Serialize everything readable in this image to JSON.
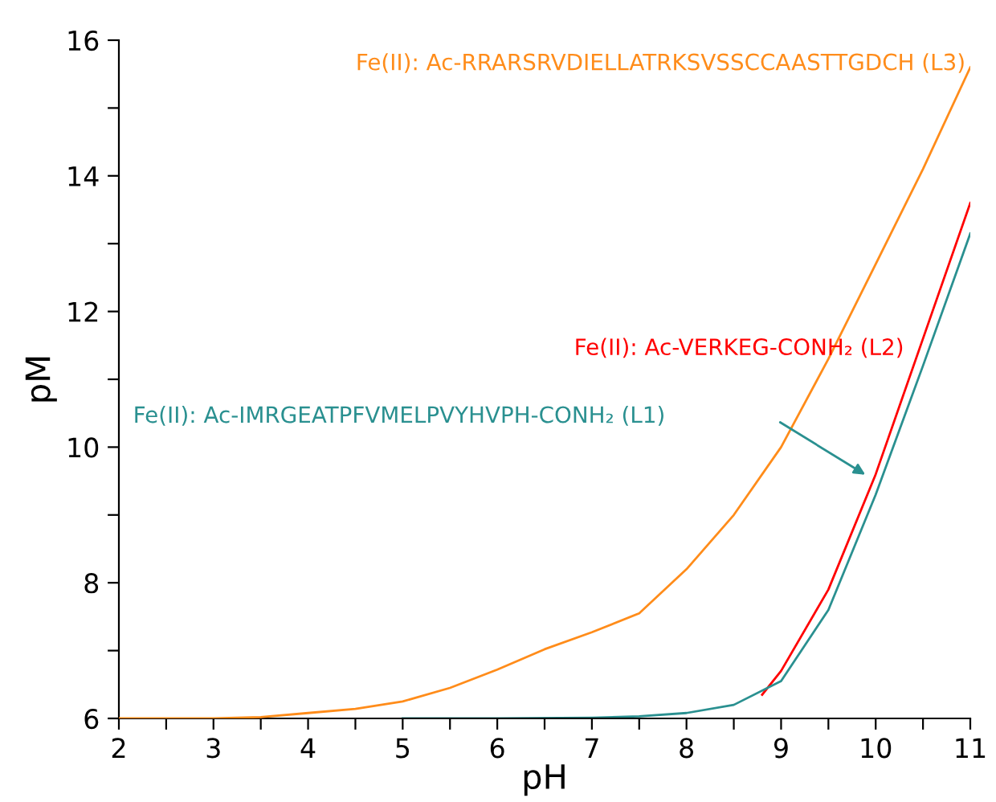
{
  "chart_data": {
    "type": "line",
    "xlabel": "pH",
    "ylabel": "pM",
    "xlim": [
      2,
      11
    ],
    "ylim": [
      6,
      16
    ],
    "xticks": [
      2,
      {
        "value": 2.5,
        "label": null
      },
      3,
      {
        "value": 3.5,
        "label": null
      },
      4,
      {
        "value": 4.5,
        "label": null
      },
      5,
      {
        "value": 5.5,
        "label": null
      },
      6,
      {
        "value": 6.5,
        "label": null
      },
      7,
      {
        "value": 7.5,
        "label": null
      },
      8,
      {
        "value": 8.5,
        "label": null
      },
      9,
      {
        "value": 9.5,
        "label": null
      },
      10,
      {
        "value": 10.5,
        "label": null
      },
      11
    ],
    "yticks": [
      6,
      {
        "value": 7,
        "label": null
      },
      8,
      {
        "value": 9,
        "label": null
      },
      10,
      {
        "value": 11,
        "label": null
      },
      12,
      {
        "value": 13,
        "label": null
      },
      14,
      {
        "value": 15,
        "label": null
      },
      16
    ],
    "grid": false,
    "legend": false,
    "marker": "none",
    "line_style": "solid",
    "series": [
      {
        "name": "Fe(II): Ac-RRARSRVDIELLATRKSVSSCCAASTTGDCH (L3)",
        "color": "#ff8c1a",
        "x": [
          2,
          3,
          3.5,
          4,
          4.5,
          5,
          5.5,
          6,
          6.5,
          7,
          7.5,
          8,
          8.5,
          9,
          9.5,
          10,
          10.5,
          11
        ],
        "values": [
          6,
          6,
          6.02,
          6.08,
          6.14,
          6.25,
          6.45,
          6.72,
          7.02,
          7.27,
          7.55,
          8.2,
          9.0,
          10.0,
          11.3,
          12.7,
          14.1,
          15.6
        ]
      },
      {
        "name": "Fe(II): Ac-VERKEG-CONH₂ (L2)",
        "color": "#ff0000",
        "x": [
          8.8,
          9,
          9.5,
          10,
          10.5,
          11
        ],
        "values": [
          6.35,
          6.7,
          7.9,
          9.6,
          11.6,
          13.6
        ]
      },
      {
        "name": "Fe(II): Ac-IMRGEATPFVMELPVYHVPH-CONH₂ (L1)",
        "color": "#2a9090",
        "x": [
          5,
          6,
          7,
          7.5,
          8,
          8.5,
          9,
          9.5,
          10,
          10.5,
          11
        ],
        "values": [
          6,
          6,
          6.01,
          6.03,
          6.08,
          6.2,
          6.55,
          7.6,
          9.3,
          11.2,
          13.15
        ]
      }
    ]
  }
}
